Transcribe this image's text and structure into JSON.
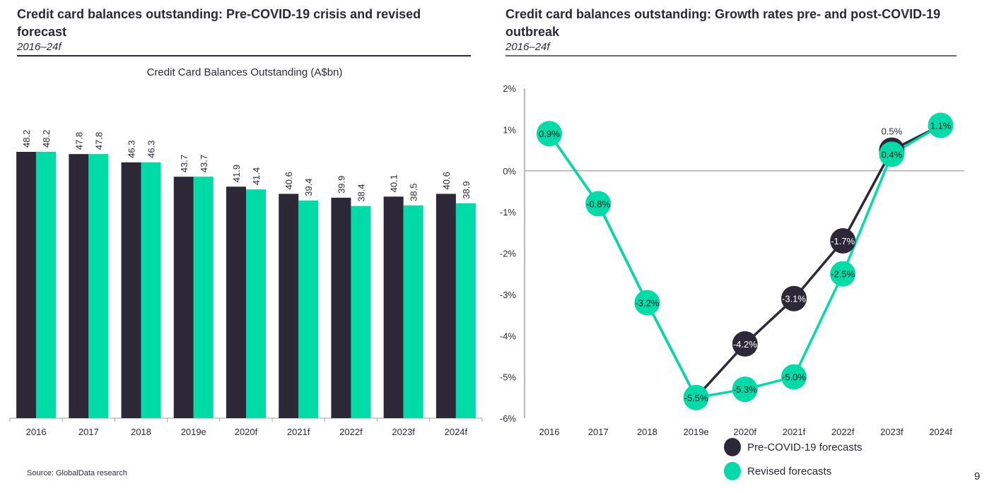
{
  "colors": {
    "pre": "#2d2838",
    "revised": "#00dba8",
    "text": "#2d2838",
    "axis": "#a0a0a0"
  },
  "left_panel": {
    "title_line1": "Credit card balances outstanding: Pre-COVID-19 crisis and revised",
    "title_line2": "forecast",
    "subtitle": "2016–24f"
  },
  "right_panel": {
    "title_line1": "Credit card balances outstanding: Growth rates pre- and post-COVID-19",
    "title_line2": "outbreak",
    "subtitle": "2016–24f"
  },
  "source": "Source: GlobalData research",
  "page_number": "9",
  "legend": [
    {
      "label": "Pre-COVID-19 forecasts",
      "series": "pre"
    },
    {
      "label": "Revised forecasts",
      "series": "revised"
    }
  ],
  "chart_data": [
    {
      "type": "bar",
      "title": "Credit Card Balances Outstanding (A$bn)",
      "xlabel": "",
      "ylabel": "",
      "categories": [
        "2016",
        "2017",
        "2018",
        "2019e",
        "2020f",
        "2021f",
        "2022f",
        "2023f",
        "2024f"
      ],
      "series": [
        {
          "name": "Pre-COVID-19 forecasts",
          "key": "pre",
          "values": [
            48.2,
            47.8,
            46.3,
            43.7,
            41.9,
            40.6,
            39.9,
            40.1,
            40.6
          ]
        },
        {
          "name": "Revised forecasts",
          "key": "revised",
          "values": [
            48.2,
            47.8,
            46.3,
            43.7,
            41.4,
            39.4,
            38.4,
            38.5,
            38.9
          ]
        }
      ],
      "ylim": [
        0,
        55
      ],
      "data_labels": true,
      "grid": false
    },
    {
      "type": "line",
      "title": "",
      "categories": [
        "2016",
        "2017",
        "2018",
        "2019e",
        "2020f",
        "2021f",
        "2022f",
        "2023f",
        "2024f"
      ],
      "series": [
        {
          "name": "Pre-COVID-19 forecasts",
          "key": "pre",
          "values": [
            0.9,
            -0.8,
            -3.2,
            -5.5,
            -4.2,
            -3.1,
            -1.7,
            0.5,
            1.1
          ]
        },
        {
          "name": "Revised forecasts",
          "key": "revised",
          "values": [
            0.9,
            -0.8,
            -3.2,
            -5.5,
            -5.3,
            -5.0,
            -2.5,
            0.4,
            1.1
          ]
        }
      ],
      "yticks": [
        "2%",
        "1%",
        "0%",
        "-1%",
        "-2%",
        "-3%",
        "-4%",
        "-5%",
        "-6%"
      ],
      "ylim": [
        -6,
        2
      ],
      "legend_position": "bottom",
      "grid": false
    }
  ]
}
